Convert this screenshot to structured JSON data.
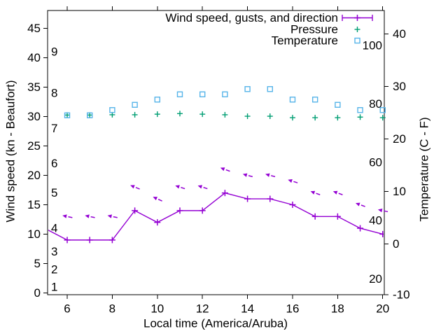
{
  "chart_data": {
    "type": "line",
    "title": "",
    "xlabel": "Local time (America/Aruba)",
    "ylabel_left": "Wind speed (kn - Beaufort)",
    "ylabel_right": "Temperature (C - F)",
    "grid": false,
    "background": "#ffffff",
    "legend_position": "top-right-inside",
    "legend": [
      {
        "label": "Wind speed, gusts, and direction",
        "color": "#9400d3",
        "sample": "errorbar"
      },
      {
        "label": "Pressure",
        "color": "#009e73",
        "sample": "plus"
      },
      {
        "label": "Temperature",
        "color": "#56b4e9",
        "sample": "square"
      }
    ],
    "axes": {
      "x": {
        "min": 5.13,
        "max": 20.07,
        "ticks": [
          6,
          8,
          10,
          12,
          14,
          16,
          18,
          20
        ]
      },
      "y_left": {
        "min": -0.3,
        "max": 48.03,
        "ticks": [
          0,
          5,
          10,
          15,
          20,
          25,
          30,
          35,
          40,
          45
        ],
        "inner_scale_name": "Beaufort",
        "inner_labels": [
          {
            "label": "1",
            "kn": 1
          },
          {
            "label": "2",
            "kn": 4
          },
          {
            "label": "3",
            "kn": 7
          },
          {
            "label": "4",
            "kn": 11
          },
          {
            "label": "5",
            "kn": 17
          },
          {
            "label": "6",
            "kn": 22
          },
          {
            "label": "7",
            "kn": 28
          },
          {
            "label": "8",
            "kn": 34
          },
          {
            "label": "9",
            "kn": 41
          }
        ]
      },
      "y_right": {
        "min": -9.67,
        "max": 44.47,
        "ticks": [
          -10,
          0,
          10,
          20,
          30,
          40
        ],
        "inner_scale_name": "Fahrenheit",
        "inner_labels": [
          {
            "label": "20",
            "f": 20
          },
          {
            "label": "40",
            "f": 40
          },
          {
            "label": "60",
            "f": 60
          },
          {
            "label": "80",
            "f": 80
          },
          {
            "label": "100",
            "f": 100
          }
        ]
      }
    },
    "x_hours": [
      6,
      7,
      8,
      9,
      10,
      11,
      12,
      13,
      14,
      15,
      16,
      17,
      18,
      19,
      20
    ],
    "series": {
      "wind": {
        "name": "Wind speed",
        "color": "#9400d3",
        "marker": "plus",
        "x": [
          5,
          6,
          7,
          8,
          9,
          10,
          11,
          12,
          13,
          14,
          15,
          16,
          17,
          18,
          19,
          20
        ],
        "values_kn": [
          11,
          9,
          9,
          9,
          14,
          12,
          14,
          14,
          17,
          16,
          16,
          15,
          13,
          13,
          11,
          10
        ]
      },
      "gusts": {
        "name": "Gusts",
        "color": "#9400d3",
        "marker": "arrow-left",
        "values_kn": [
          13,
          13,
          13,
          18,
          16,
          18,
          18,
          21,
          20,
          20,
          19,
          17,
          17,
          15,
          14
        ],
        "arrow_tilt_deg": [
          12,
          12,
          12,
          22,
          25,
          18,
          18,
          20,
          15,
          15,
          18,
          20,
          20,
          20,
          12
        ]
      },
      "pressure": {
        "name": "Pressure",
        "color": "#009e73",
        "marker": "plus",
        "plotted_on": "left_axis_kn",
        "values_inhg": [
          30.25,
          30.25,
          30.3,
          30.3,
          30.4,
          30.5,
          30.4,
          30.3,
          30.05,
          30.05,
          29.8,
          29.8,
          29.8,
          29.9,
          29.8
        ]
      },
      "temperature": {
        "name": "Temperature",
        "color": "#56b4e9",
        "marker": "open-square",
        "values_c": [
          24.5,
          24.5,
          25.5,
          26.5,
          27.5,
          28.5,
          28.5,
          28.5,
          29.5,
          29.5,
          27.5,
          27.5,
          26.5,
          25.5,
          25.5
        ]
      }
    }
  }
}
